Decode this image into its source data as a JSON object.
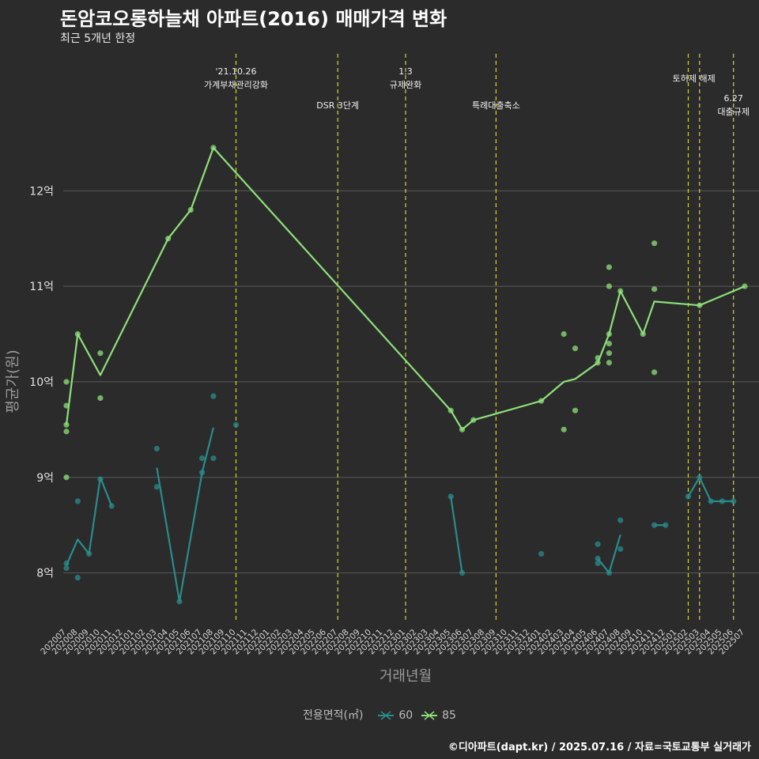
{
  "title": "돈암코오롱하늘채 아파트(2016) 매매가격 변화",
  "subtitle": "최근 5개년 한정",
  "caption": "©디아파트(dapt.kr) / 2025.07.16 / 자료=국토교통부 실거래가",
  "colors": {
    "background": "#2b2b2b",
    "grid": "#5a5a5a",
    "s60": "#2a8c8c",
    "s85": "#8de07a",
    "event": "#d6d629",
    "text": "#e6e6e6",
    "axis_title": "#9a9a9a"
  },
  "chart_data": {
    "type": "line",
    "xlabel": "거래년월",
    "ylabel": "평균가(원)",
    "y_unit": "억",
    "ylim": [
      7.5,
      13.5
    ],
    "y_ticks": [
      8,
      9,
      10,
      11,
      12
    ],
    "y_tick_labels": [
      "8억",
      "9억",
      "10억",
      "11억",
      "12억"
    ],
    "x": [
      "202007",
      "202008",
      "202009",
      "202010",
      "202011",
      "202012",
      "202101",
      "202102",
      "202103",
      "202104",
      "202105",
      "202106",
      "202107",
      "202108",
      "202109",
      "202110",
      "202111",
      "202112",
      "202201",
      "202202",
      "202203",
      "202204",
      "202205",
      "202206",
      "202207",
      "202208",
      "202209",
      "202210",
      "202211",
      "202212",
      "202301",
      "202302",
      "202303",
      "202304",
      "202305",
      "202306",
      "202307",
      "202308",
      "202309",
      "202310",
      "202311",
      "202312",
      "202401",
      "202402",
      "202403",
      "202404",
      "202405",
      "202406",
      "202407",
      "202408",
      "202409",
      "202410",
      "202411",
      "202412",
      "202501",
      "202502",
      "202503",
      "202504",
      "202505",
      "202506",
      "202507"
    ],
    "legend_title": "전용면적(㎡)",
    "series": [
      {
        "name": "60",
        "color": "#2a8c8c",
        "segments": [
          [
            [
              "202007",
              8.08
            ],
            [
              "202008",
              8.35
            ],
            [
              "202009",
              8.2
            ],
            [
              "202010",
              9.0
            ],
            [
              "202011",
              8.7
            ]
          ],
          [
            [
              "202103",
              9.1
            ],
            [
              "202105",
              7.7
            ],
            [
              "202107",
              9.05
            ],
            [
              "202108",
              9.52
            ]
          ],
          [
            [
              "202305",
              8.8
            ],
            [
              "202306",
              8.0
            ]
          ],
          [
            [
              "202406",
              8.15
            ],
            [
              "202407",
              8.0
            ],
            [
              "202408",
              8.4
            ]
          ],
          [
            [
              "202411",
              8.5
            ],
            [
              "202412",
              8.5
            ]
          ],
          [
            [
              "202502",
              8.8
            ],
            [
              "202503",
              9.0
            ],
            [
              "202504",
              8.75
            ],
            [
              "202505",
              8.75
            ],
            [
              "202506",
              8.75
            ]
          ]
        ],
        "points": [
          [
            "202007",
            8.05
          ],
          [
            "202007",
            8.1
          ],
          [
            "202008",
            8.75
          ],
          [
            "202008",
            7.95
          ],
          [
            "202009",
            8.2
          ],
          [
            "202010",
            8.98
          ],
          [
            "202011",
            8.7
          ],
          [
            "202103",
            9.3
          ],
          [
            "202103",
            8.9
          ],
          [
            "202105",
            7.7
          ],
          [
            "202107",
            9.2
          ],
          [
            "202107",
            9.05
          ],
          [
            "202108",
            9.85
          ],
          [
            "202108",
            9.2
          ],
          [
            "202110",
            9.55
          ],
          [
            "202305",
            8.8
          ],
          [
            "202306",
            8.0
          ],
          [
            "202401",
            8.2
          ],
          [
            "202406",
            8.3
          ],
          [
            "202406",
            8.15
          ],
          [
            "202406",
            8.1
          ],
          [
            "202407",
            8.0
          ],
          [
            "202408",
            8.55
          ],
          [
            "202408",
            8.25
          ],
          [
            "202411",
            8.5
          ],
          [
            "202412",
            8.5
          ],
          [
            "202502",
            8.8
          ],
          [
            "202503",
            9.0
          ],
          [
            "202504",
            8.75
          ],
          [
            "202505",
            8.75
          ],
          [
            "202506",
            8.75
          ]
        ]
      },
      {
        "name": "85",
        "color": "#8de07a",
        "segments": [
          [
            [
              "202007",
              9.55
            ],
            [
              "202008",
              10.5
            ],
            [
              "202010",
              10.07
            ],
            [
              "202104",
              11.5
            ],
            [
              "202106",
              11.8
            ],
            [
              "202108",
              12.45
            ],
            [
              "202305",
              9.7
            ],
            [
              "202306",
              9.5
            ],
            [
              "202307",
              9.6
            ],
            [
              "202401",
              9.8
            ],
            [
              "202403",
              10.0
            ],
            [
              "202404",
              10.03
            ],
            [
              "202406",
              10.2
            ],
            [
              "202407",
              10.5
            ],
            [
              "202408",
              10.95
            ],
            [
              "202410",
              10.5
            ],
            [
              "202411",
              10.84
            ],
            [
              "202503",
              10.8
            ],
            [
              "202507",
              11.0
            ]
          ]
        ],
        "points": [
          [
            "202007",
            10.0
          ],
          [
            "202007",
            9.75
          ],
          [
            "202007",
            9.55
          ],
          [
            "202007",
            9.48
          ],
          [
            "202007",
            9.0
          ],
          [
            "202008",
            10.5
          ],
          [
            "202010",
            10.3
          ],
          [
            "202010",
            9.83
          ],
          [
            "202104",
            11.5
          ],
          [
            "202106",
            11.8
          ],
          [
            "202108",
            12.45
          ],
          [
            "202305",
            9.7
          ],
          [
            "202306",
            9.5
          ],
          [
            "202307",
            9.6
          ],
          [
            "202401",
            9.8
          ],
          [
            "202403",
            10.5
          ],
          [
            "202403",
            9.5
          ],
          [
            "202404",
            10.35
          ],
          [
            "202404",
            9.7
          ],
          [
            "202406",
            10.25
          ],
          [
            "202406",
            10.2
          ],
          [
            "202407",
            11.2
          ],
          [
            "202407",
            11.0
          ],
          [
            "202407",
            10.5
          ],
          [
            "202407",
            10.4
          ],
          [
            "202407",
            10.3
          ],
          [
            "202407",
            10.2
          ],
          [
            "202408",
            10.95
          ],
          [
            "202410",
            10.5
          ],
          [
            "202411",
            11.45
          ],
          [
            "202411",
            10.97
          ],
          [
            "202411",
            10.1
          ],
          [
            "202503",
            10.8
          ],
          [
            "202507",
            11.0
          ]
        ]
      }
    ],
    "events": [
      {
        "x": "202110",
        "lines": [
          "'21.10.26",
          "가계부채관리강화"
        ],
        "level": 1
      },
      {
        "x": "202207",
        "lines": [
          "DSR 3단계"
        ],
        "level": 3
      },
      {
        "x": "202301",
        "lines": [
          "1.3",
          "규제완화"
        ],
        "level": 1
      },
      {
        "x": "202309",
        "lines": [
          "특례대출축소"
        ],
        "level": 3
      },
      {
        "x": "202502",
        "lines": [
          "토허제 해제"
        ],
        "level": 2,
        "anchor_between": "202503"
      },
      {
        "x": "202503",
        "lines": [],
        "level": 0
      },
      {
        "x": "202506",
        "lines": [
          "6.27",
          "대출규제"
        ],
        "level": 2.6
      }
    ]
  }
}
